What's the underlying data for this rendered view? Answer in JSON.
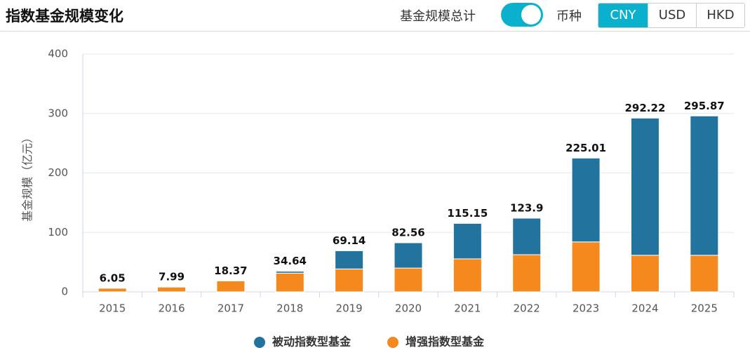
{
  "header": {
    "title": "指数基金规模变化",
    "toggle_label": "基金规模总计",
    "toggle_on": true,
    "currency_label": "币种",
    "currencies": [
      "CNY",
      "USD",
      "HKD"
    ],
    "active_currency": "CNY"
  },
  "chart_data": {
    "type": "stacked_bar",
    "y_label": "基金规模（亿元）",
    "categories": [
      "2015",
      "2016",
      "2017",
      "2018",
      "2019",
      "2020",
      "2021",
      "2022",
      "2023",
      "2024",
      "2025"
    ],
    "series": [
      {
        "name": "被动指数型基金",
        "color": "#23739f",
        "values": [
          0,
          0,
          0,
          3.14,
          30.64,
          42.56,
          59.65,
          61.4,
          141.01,
          230.72,
          234.37
        ]
      },
      {
        "name": "增强指数型基金",
        "color": "#f5891e",
        "values": [
          6.05,
          7.99,
          18.37,
          31.5,
          38.5,
          40,
          55.5,
          62.5,
          84,
          61.5,
          61.5
        ]
      }
    ],
    "totals": [
      6.05,
      7.99,
      18.37,
      34.64,
      69.14,
      82.56,
      115.15,
      123.9,
      225.01,
      292.22,
      295.87
    ],
    "ylim": [
      0,
      400
    ],
    "yticks": [
      0,
      100,
      200,
      300,
      400
    ],
    "grid": true,
    "legend": "bottom"
  }
}
